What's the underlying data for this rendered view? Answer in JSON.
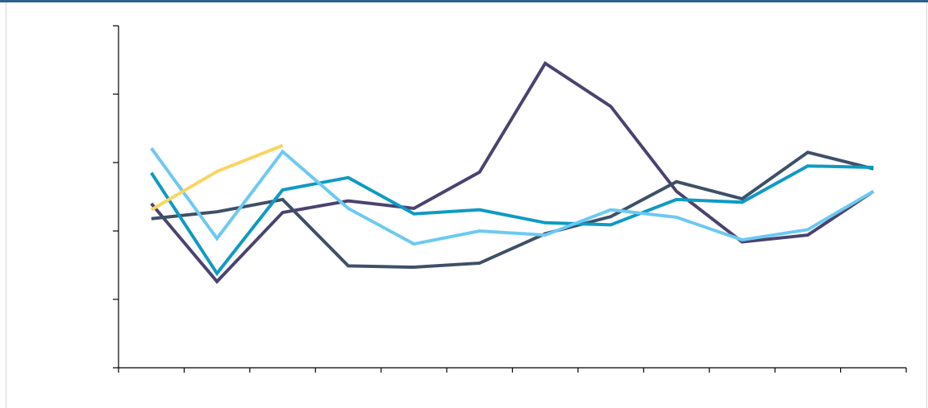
{
  "chart_data": {
    "type": "line",
    "categories": [
      null,
      null,
      null,
      null,
      null,
      null,
      null,
      null,
      null,
      null,
      null,
      null
    ],
    "series": [
      {
        "color": "#4a4370",
        "values": [
          2.4,
          1.26,
          2.27,
          2.44,
          2.33,
          2.86,
          4.45,
          3.82,
          2.58,
          1.84,
          1.94,
          2.58
        ]
      },
      {
        "color": "#3d5068",
        "values": [
          2.18,
          2.28,
          2.46,
          1.49,
          1.47,
          1.53,
          1.96,
          2.21,
          2.72,
          2.47,
          3.15,
          2.91
        ]
      },
      {
        "color": "#0e9ac4",
        "values": [
          2.85,
          1.38,
          2.6,
          2.78,
          2.25,
          2.31,
          2.12,
          2.09,
          2.46,
          2.42,
          2.95,
          2.93
        ]
      },
      {
        "color": "#6cc9f2",
        "values": [
          3.21,
          1.89,
          3.16,
          2.33,
          1.81,
          2.0,
          1.94,
          2.31,
          2.2,
          1.87,
          2.02,
          2.58
        ]
      },
      {
        "color": "#fbd460",
        "values": [
          2.31,
          2.87,
          3.25,
          null,
          null,
          null,
          null,
          null,
          null,
          null,
          null,
          null
        ]
      }
    ],
    "ylim": [
      0,
      5
    ],
    "yticks": [
      0,
      1,
      2,
      3,
      4,
      5
    ]
  }
}
